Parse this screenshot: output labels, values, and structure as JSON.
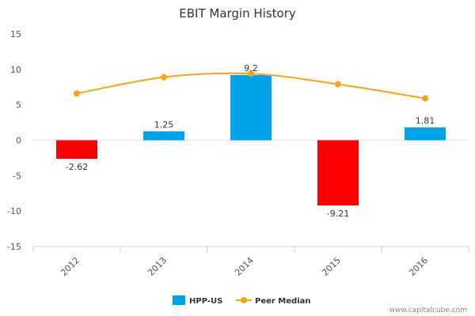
{
  "chart_data": {
    "type": "bar",
    "title": "EBIT Margin History",
    "categories": [
      "2012",
      "2013",
      "2014",
      "2015",
      "2016"
    ],
    "series": [
      {
        "name": "HPP-US",
        "kind": "bar",
        "color": "#00a2e8",
        "negative_color": "#ff0000",
        "values": [
          -2.62,
          1.25,
          9.2,
          -9.21,
          1.81
        ],
        "labels": [
          "-2.62",
          "1.25",
          "9.2",
          "-9.21",
          "1.81"
        ]
      },
      {
        "name": "Peer Median",
        "kind": "line",
        "color": "#f7a21b",
        "values": [
          6.6,
          8.9,
          9.4,
          7.9,
          5.9
        ]
      }
    ],
    "ylim": [
      -15,
      15
    ],
    "yticks": [
      15,
      10,
      5,
      0,
      -5,
      -10,
      -15
    ],
    "xlabel": "",
    "ylabel": "",
    "legend": "bottom-center"
  },
  "credit": "www.capitalcube.com"
}
